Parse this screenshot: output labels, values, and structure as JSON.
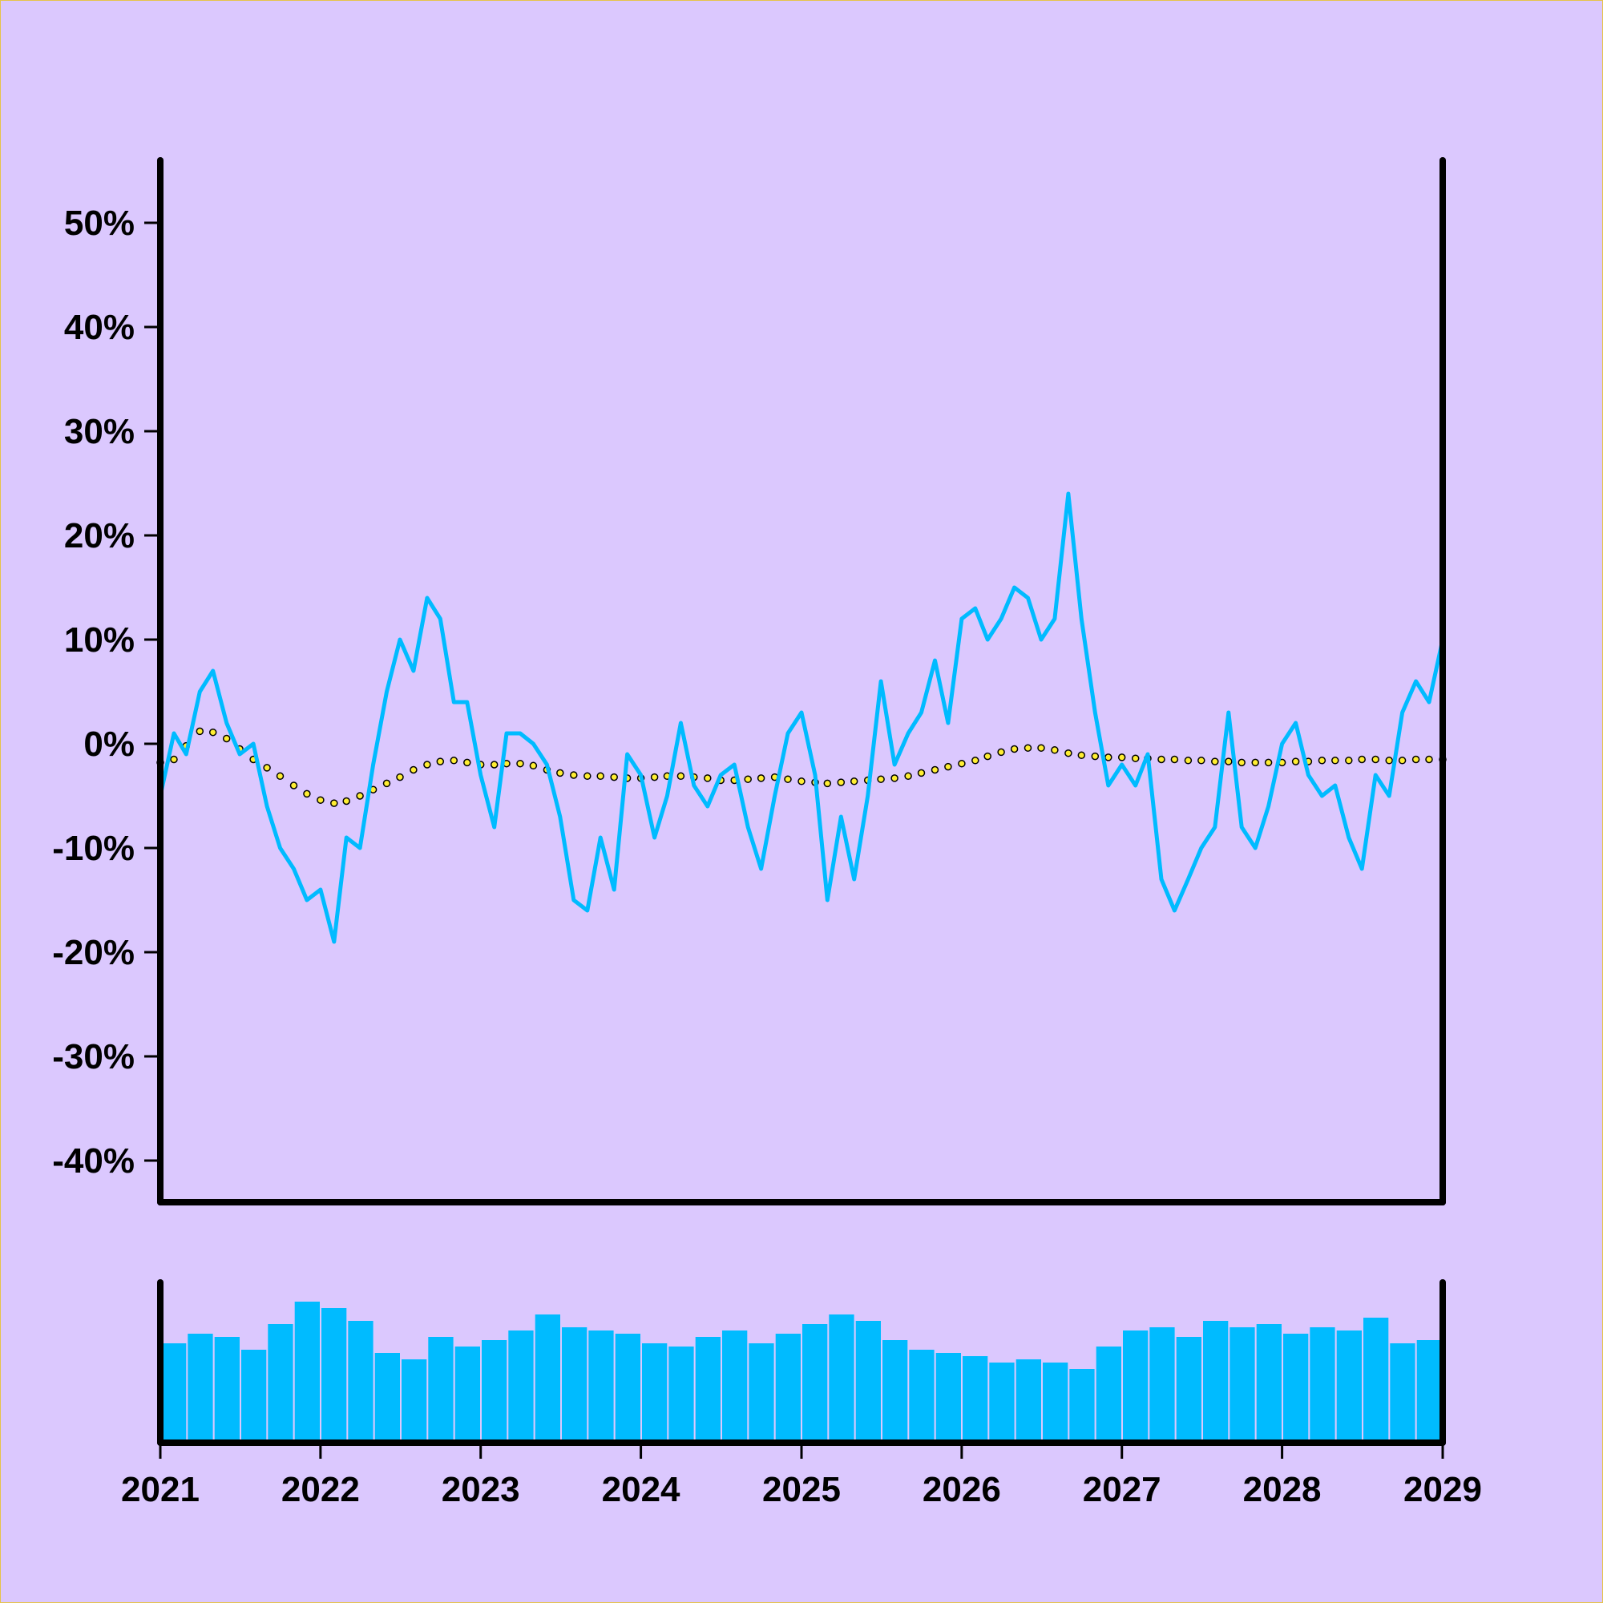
{
  "colors": {
    "background": "#dbc8fe",
    "frame": "#e6c34a",
    "price_line": "#00bbff",
    "moving_average_fill": "#ffee33",
    "moving_average_outline": "#000000",
    "volume_bars": "#00bbff",
    "axes": "#000000"
  },
  "chart_data": {
    "type": "line",
    "grid": false,
    "legend": "none",
    "y_axis": {
      "ylim": [
        -44,
        56
      ],
      "ticks": [
        50,
        40,
        30,
        20,
        10,
        0,
        -10,
        -20,
        -30,
        -40
      ],
      "tick_labels": [
        "50%",
        "40%",
        "30%",
        "20%",
        "10%",
        "0%",
        "-10%",
        "-20%",
        "-30%",
        "-40%"
      ]
    },
    "x_axis": {
      "xlim": [
        "2021-01-01",
        "2029-01-01"
      ],
      "ticks": [
        "2021-01-01",
        "2022-01-01",
        "2023-01-01",
        "2024-01-01",
        "2025-01-01",
        "2026-01-01",
        "2027-01-01",
        "2028-01-01",
        "2029-01-01"
      ],
      "tick_labels": [
        "2021",
        "2022",
        "2023",
        "2024",
        "2025",
        "2026",
        "2027",
        "2028",
        "2029"
      ]
    },
    "series": [
      {
        "kind": "line",
        "points": [
          [
            "2021-01-01",
            -5
          ],
          [
            "2021-02-01",
            1
          ],
          [
            "2021-03-01",
            -1
          ],
          [
            "2021-04-01",
            5
          ],
          [
            "2021-05-01",
            7
          ],
          [
            "2021-06-01",
            2
          ],
          [
            "2021-07-01",
            -1
          ],
          [
            "2021-08-01",
            0
          ],
          [
            "2021-09-01",
            -6
          ],
          [
            "2021-10-01",
            -10
          ],
          [
            "2021-11-01",
            -12
          ],
          [
            "2021-12-01",
            -15
          ],
          [
            "2022-01-01",
            -14
          ],
          [
            "2022-02-01",
            -19
          ],
          [
            "2022-03-01",
            -9
          ],
          [
            "2022-04-01",
            -10
          ],
          [
            "2022-05-01",
            -2
          ],
          [
            "2022-06-01",
            5
          ],
          [
            "2022-07-01",
            10
          ],
          [
            "2022-08-01",
            7
          ],
          [
            "2022-09-01",
            14
          ],
          [
            "2022-10-01",
            12
          ],
          [
            "2022-11-01",
            4
          ],
          [
            "2022-12-01",
            4
          ],
          [
            "2023-01-01",
            -3
          ],
          [
            "2023-02-01",
            -8
          ],
          [
            "2023-03-01",
            1
          ],
          [
            "2023-04-01",
            1
          ],
          [
            "2023-05-01",
            0
          ],
          [
            "2023-06-01",
            -2
          ],
          [
            "2023-07-01",
            -7
          ],
          [
            "2023-08-01",
            -15
          ],
          [
            "2023-09-01",
            -16
          ],
          [
            "2023-10-01",
            -9
          ],
          [
            "2023-11-01",
            -14
          ],
          [
            "2023-12-01",
            -1
          ],
          [
            "2024-01-01",
            -3
          ],
          [
            "2024-02-01",
            -9
          ],
          [
            "2024-03-01",
            -5
          ],
          [
            "2024-04-01",
            2
          ],
          [
            "2024-05-01",
            -4
          ],
          [
            "2024-06-01",
            -6
          ],
          [
            "2024-07-01",
            -3
          ],
          [
            "2024-08-01",
            -2
          ],
          [
            "2024-09-01",
            -8
          ],
          [
            "2024-10-01",
            -12
          ],
          [
            "2024-11-01",
            -5
          ],
          [
            "2024-12-01",
            1
          ],
          [
            "2025-01-01",
            3
          ],
          [
            "2025-02-01",
            -3
          ],
          [
            "2025-03-01",
            -15
          ],
          [
            "2025-04-01",
            -7
          ],
          [
            "2025-05-01",
            -13
          ],
          [
            "2025-06-01",
            -5
          ],
          [
            "2025-07-01",
            6
          ],
          [
            "2025-08-01",
            -2
          ],
          [
            "2025-09-01",
            1
          ],
          [
            "2025-10-01",
            3
          ],
          [
            "2025-11-01",
            8
          ],
          [
            "2025-12-01",
            2
          ],
          [
            "2026-01-01",
            12
          ],
          [
            "2026-02-01",
            13
          ],
          [
            "2026-03-01",
            10
          ],
          [
            "2026-04-01",
            12
          ],
          [
            "2026-05-01",
            15
          ],
          [
            "2026-06-01",
            14
          ],
          [
            "2026-07-01",
            10
          ],
          [
            "2026-08-01",
            12
          ],
          [
            "2026-09-01",
            24
          ],
          [
            "2026-10-01",
            12
          ],
          [
            "2026-11-01",
            3
          ],
          [
            "2026-12-01",
            -4
          ],
          [
            "2027-01-01",
            -2
          ],
          [
            "2027-02-01",
            -4
          ],
          [
            "2027-03-01",
            -1
          ],
          [
            "2027-04-01",
            -13
          ],
          [
            "2027-05-01",
            -16
          ],
          [
            "2027-06-01",
            -13
          ],
          [
            "2027-07-01",
            -10
          ],
          [
            "2027-08-01",
            -8
          ],
          [
            "2027-09-01",
            3
          ],
          [
            "2027-10-01",
            -8
          ],
          [
            "2027-11-01",
            -10
          ],
          [
            "2027-12-01",
            -6
          ],
          [
            "2028-01-01",
            0
          ],
          [
            "2028-02-01",
            2
          ],
          [
            "2028-03-01",
            -3
          ],
          [
            "2028-04-01",
            -5
          ],
          [
            "2028-05-01",
            -4
          ],
          [
            "2028-06-01",
            -9
          ],
          [
            "2028-07-01",
            -12
          ],
          [
            "2028-08-01",
            -3
          ],
          [
            "2028-09-01",
            -5
          ],
          [
            "2028-10-01",
            3
          ],
          [
            "2028-11-01",
            6
          ],
          [
            "2028-12-01",
            4
          ],
          [
            "2029-01-01",
            10
          ]
        ]
      },
      {
        "kind": "moving-average-dotted",
        "points": [
          [
            "2021-01-01",
            -1.8
          ],
          [
            "2021-02-01",
            -1.5
          ],
          [
            "2021-03-01",
            -0.2
          ],
          [
            "2021-04-01",
            1.2
          ],
          [
            "2021-05-01",
            1.1
          ],
          [
            "2021-06-01",
            0.5
          ],
          [
            "2021-07-01",
            -0.5
          ],
          [
            "2021-08-01",
            -1.5
          ],
          [
            "2021-09-01",
            -2.3
          ],
          [
            "2021-10-01",
            -3.1
          ],
          [
            "2021-11-01",
            -4.0
          ],
          [
            "2021-12-01",
            -4.8
          ],
          [
            "2022-01-01",
            -5.4
          ],
          [
            "2022-02-01",
            -5.7
          ],
          [
            "2022-03-01",
            -5.5
          ],
          [
            "2022-04-01",
            -5.0
          ],
          [
            "2022-05-01",
            -4.4
          ],
          [
            "2022-06-01",
            -3.8
          ],
          [
            "2022-07-01",
            -3.2
          ],
          [
            "2022-08-01",
            -2.5
          ],
          [
            "2022-09-01",
            -2.0
          ],
          [
            "2022-10-01",
            -1.7
          ],
          [
            "2022-11-01",
            -1.6
          ],
          [
            "2022-12-01",
            -1.8
          ],
          [
            "2023-01-01",
            -2.0
          ],
          [
            "2023-02-01",
            -2.0
          ],
          [
            "2023-03-01",
            -1.9
          ],
          [
            "2023-04-01",
            -1.9
          ],
          [
            "2023-05-01",
            -2.1
          ],
          [
            "2023-06-01",
            -2.5
          ],
          [
            "2023-07-01",
            -2.8
          ],
          [
            "2023-08-01",
            -3.0
          ],
          [
            "2023-09-01",
            -3.1
          ],
          [
            "2023-10-01",
            -3.1
          ],
          [
            "2023-11-01",
            -3.2
          ],
          [
            "2023-12-01",
            -3.3
          ],
          [
            "2024-01-01",
            -3.3
          ],
          [
            "2024-02-01",
            -3.2
          ],
          [
            "2024-03-01",
            -3.1
          ],
          [
            "2024-04-01",
            -3.1
          ],
          [
            "2024-05-01",
            -3.2
          ],
          [
            "2024-06-01",
            -3.3
          ],
          [
            "2024-07-01",
            -3.5
          ],
          [
            "2024-08-01",
            -3.5
          ],
          [
            "2024-09-01",
            -3.4
          ],
          [
            "2024-10-01",
            -3.3
          ],
          [
            "2024-11-01",
            -3.2
          ],
          [
            "2024-12-01",
            -3.4
          ],
          [
            "2025-01-01",
            -3.6
          ],
          [
            "2025-02-01",
            -3.7
          ],
          [
            "2025-03-01",
            -3.8
          ],
          [
            "2025-04-01",
            -3.7
          ],
          [
            "2025-05-01",
            -3.6
          ],
          [
            "2025-06-01",
            -3.5
          ],
          [
            "2025-07-01",
            -3.4
          ],
          [
            "2025-08-01",
            -3.3
          ],
          [
            "2025-09-01",
            -3.1
          ],
          [
            "2025-10-01",
            -2.8
          ],
          [
            "2025-11-01",
            -2.5
          ],
          [
            "2025-12-01",
            -2.2
          ],
          [
            "2026-01-01",
            -1.9
          ],
          [
            "2026-02-01",
            -1.6
          ],
          [
            "2026-03-01",
            -1.2
          ],
          [
            "2026-04-01",
            -0.8
          ],
          [
            "2026-05-01",
            -0.5
          ],
          [
            "2026-06-01",
            -0.4
          ],
          [
            "2026-07-01",
            -0.4
          ],
          [
            "2026-08-01",
            -0.6
          ],
          [
            "2026-09-01",
            -0.9
          ],
          [
            "2026-10-01",
            -1.1
          ],
          [
            "2026-11-01",
            -1.2
          ],
          [
            "2026-12-01",
            -1.3
          ],
          [
            "2027-01-01",
            -1.3
          ],
          [
            "2027-02-01",
            -1.4
          ],
          [
            "2027-03-01",
            -1.4
          ],
          [
            "2027-04-01",
            -1.5
          ],
          [
            "2027-05-01",
            -1.5
          ],
          [
            "2027-06-01",
            -1.6
          ],
          [
            "2027-07-01",
            -1.6
          ],
          [
            "2027-08-01",
            -1.7
          ],
          [
            "2027-09-01",
            -1.7
          ],
          [
            "2027-10-01",
            -1.8
          ],
          [
            "2027-11-01",
            -1.8
          ],
          [
            "2027-12-01",
            -1.8
          ],
          [
            "2028-01-01",
            -1.8
          ],
          [
            "2028-02-01",
            -1.7
          ],
          [
            "2028-03-01",
            -1.7
          ],
          [
            "2028-04-01",
            -1.6
          ],
          [
            "2028-05-01",
            -1.6
          ],
          [
            "2028-06-01",
            -1.6
          ],
          [
            "2028-07-01",
            -1.5
          ],
          [
            "2028-08-01",
            -1.5
          ],
          [
            "2028-09-01",
            -1.6
          ],
          [
            "2028-10-01",
            -1.6
          ],
          [
            "2028-11-01",
            -1.5
          ],
          [
            "2028-12-01",
            -1.5
          ],
          [
            "2029-01-01",
            -1.5
          ]
        ]
      }
    ],
    "volume": {
      "kind": "bar",
      "ylim": [
        0,
        1
      ],
      "x": [
        "2021-01",
        "2021-03",
        "2021-05",
        "2021-07",
        "2021-09",
        "2021-11",
        "2022-01",
        "2022-03",
        "2022-05",
        "2022-07",
        "2022-09",
        "2022-11",
        "2023-01",
        "2023-03",
        "2023-05",
        "2023-07",
        "2023-09",
        "2023-11",
        "2024-01",
        "2024-03",
        "2024-05",
        "2024-07",
        "2024-09",
        "2024-11",
        "2025-01",
        "2025-03",
        "2025-05",
        "2025-07",
        "2025-09",
        "2025-11",
        "2026-01",
        "2026-03",
        "2026-05",
        "2026-07",
        "2026-09",
        "2026-11",
        "2027-01",
        "2027-03",
        "2027-05",
        "2027-07",
        "2027-09",
        "2027-11",
        "2028-01",
        "2028-03",
        "2028-05",
        "2028-07",
        "2028-09",
        "2028-11"
      ],
      "values": [
        0.62,
        0.68,
        0.66,
        0.58,
        0.74,
        0.88,
        0.84,
        0.76,
        0.56,
        0.52,
        0.66,
        0.6,
        0.64,
        0.7,
        0.8,
        0.72,
        0.7,
        0.68,
        0.62,
        0.6,
        0.66,
        0.7,
        0.62,
        0.68,
        0.74,
        0.8,
        0.76,
        0.64,
        0.58,
        0.56,
        0.54,
        0.5,
        0.52,
        0.5,
        0.46,
        0.6,
        0.7,
        0.72,
        0.66,
        0.76,
        0.72,
        0.74,
        0.68,
        0.72,
        0.7,
        0.78,
        0.62,
        0.64
      ]
    }
  }
}
